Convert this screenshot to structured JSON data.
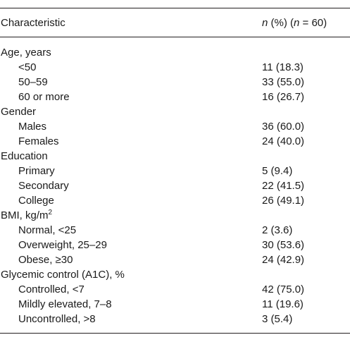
{
  "table": {
    "header": {
      "characteristic": "Characteristic",
      "n_label": "n",
      "percent_label": " (%) (",
      "n_label_2": "n",
      "total": " = 60)"
    },
    "rows": [
      {
        "kind": "group",
        "label": "Age, years",
        "value": ""
      },
      {
        "kind": "sub",
        "label": "<50",
        "value": "11 (18.3)"
      },
      {
        "kind": "sub",
        "label": "50–59",
        "value": "33 (55.0)"
      },
      {
        "kind": "sub",
        "label": "60 or more",
        "value": "16 (26.7)"
      },
      {
        "kind": "group",
        "label": "Gender",
        "value": ""
      },
      {
        "kind": "sub",
        "label": "Males",
        "value": "36 (60.0)"
      },
      {
        "kind": "sub",
        "label": "Females",
        "value": "24 (40.0)"
      },
      {
        "kind": "group",
        "label": "Education",
        "value": ""
      },
      {
        "kind": "sub",
        "label": "Primary",
        "value": "5 (9.4)"
      },
      {
        "kind": "sub",
        "label": "Secondary",
        "value": "22 (41.5)"
      },
      {
        "kind": "sub",
        "label": "College",
        "value": "26 (49.1)"
      },
      {
        "kind": "group",
        "label": "BMI, kg/m",
        "sup": "2",
        "value": ""
      },
      {
        "kind": "sub",
        "label": "Normal, <25",
        "value": "2 (3.6)"
      },
      {
        "kind": "sub",
        "label": "Overweight, 25–29",
        "value": "30 (53.6)"
      },
      {
        "kind": "sub",
        "label": "Obese, ≥30",
        "value": "24 (42.9)"
      },
      {
        "kind": "group",
        "label": "Glycemic control (A1C), %",
        "value": ""
      },
      {
        "kind": "sub",
        "label": "Controlled, <7",
        "value": "42 (75.0)"
      },
      {
        "kind": "sub",
        "label": "Mildly elevated, 7–8",
        "value": "11 (19.6)"
      },
      {
        "kind": "sub",
        "label": "Uncontrolled, >8",
        "value": "3 (5.4)"
      }
    ]
  }
}
